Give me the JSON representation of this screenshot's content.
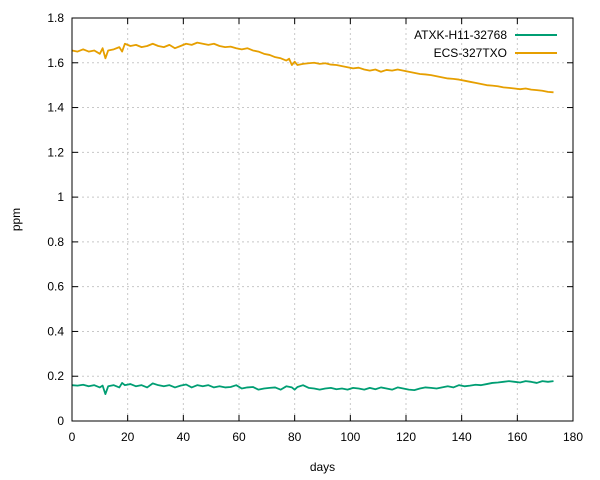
{
  "chart_data": {
    "type": "line",
    "title": "",
    "xlabel": "days",
    "ylabel": "ppm",
    "xlim": [
      0,
      180
    ],
    "ylim": [
      0,
      1.8
    ],
    "xticks": [
      0,
      20,
      40,
      60,
      80,
      100,
      120,
      140,
      160,
      180
    ],
    "xtick_labels": [
      "0",
      "20",
      "40",
      "60",
      "80",
      "100",
      "120",
      "140",
      "160",
      "180"
    ],
    "yticks": [
      0,
      0.2,
      0.4,
      0.6,
      0.8,
      1,
      1.2,
      1.4,
      1.6,
      1.8
    ],
    "ytick_labels": [
      "0",
      "0.2",
      "0.4",
      "0.6",
      "0.8",
      "1",
      "1.2",
      "1.4",
      "1.6",
      "1.8"
    ],
    "grid": true,
    "legend_position": "top-right",
    "series": [
      {
        "name": "ATXK-H11-32768",
        "color": "#009e73",
        "x": [
          0,
          2,
          4,
          6,
          8,
          10,
          11,
          12,
          13,
          15,
          17,
          18,
          19,
          21,
          23,
          25,
          27,
          29,
          31,
          33,
          35,
          37,
          39,
          41,
          43,
          45,
          47,
          49,
          51,
          53,
          55,
          57,
          59,
          61,
          63,
          65,
          67,
          69,
          71,
          73,
          75,
          77,
          79,
          80,
          81,
          83,
          85,
          87,
          89,
          91,
          93,
          95,
          97,
          99,
          101,
          103,
          105,
          107,
          109,
          111,
          113,
          115,
          117,
          119,
          121,
          123,
          125,
          127,
          129,
          131,
          133,
          135,
          137,
          139,
          141,
          143,
          145,
          147,
          149,
          151,
          153,
          155,
          157,
          159,
          161,
          163,
          165,
          167,
          169,
          171,
          173
        ],
        "y": [
          0.16,
          0.158,
          0.162,
          0.155,
          0.16,
          0.15,
          0.158,
          0.12,
          0.155,
          0.16,
          0.15,
          0.17,
          0.16,
          0.165,
          0.155,
          0.16,
          0.15,
          0.168,
          0.16,
          0.155,
          0.16,
          0.15,
          0.158,
          0.163,
          0.15,
          0.16,
          0.155,
          0.16,
          0.15,
          0.155,
          0.15,
          0.152,
          0.16,
          0.145,
          0.15,
          0.152,
          0.14,
          0.145,
          0.148,
          0.15,
          0.14,
          0.155,
          0.15,
          0.14,
          0.152,
          0.16,
          0.148,
          0.145,
          0.14,
          0.145,
          0.148,
          0.142,
          0.145,
          0.14,
          0.148,
          0.145,
          0.14,
          0.148,
          0.142,
          0.15,
          0.145,
          0.14,
          0.15,
          0.145,
          0.14,
          0.138,
          0.145,
          0.15,
          0.148,
          0.145,
          0.15,
          0.155,
          0.15,
          0.16,
          0.155,
          0.158,
          0.162,
          0.16,
          0.165,
          0.17,
          0.172,
          0.175,
          0.178,
          0.175,
          0.172,
          0.178,
          0.175,
          0.17,
          0.178,
          0.175,
          0.178
        ]
      },
      {
        "name": "ECS-327TXO",
        "color": "#e69f00",
        "x": [
          0,
          2,
          4,
          6,
          8,
          10,
          11,
          12,
          13,
          15,
          17,
          18,
          19,
          21,
          23,
          25,
          27,
          29,
          31,
          33,
          35,
          37,
          39,
          41,
          43,
          45,
          47,
          49,
          51,
          53,
          55,
          57,
          59,
          61,
          63,
          65,
          67,
          69,
          71,
          73,
          75,
          77,
          78,
          79,
          80,
          81,
          83,
          85,
          87,
          89,
          91,
          93,
          95,
          97,
          99,
          101,
          103,
          105,
          107,
          109,
          111,
          113,
          115,
          117,
          119,
          121,
          123,
          125,
          127,
          129,
          131,
          133,
          135,
          137,
          139,
          141,
          143,
          145,
          147,
          149,
          151,
          153,
          155,
          157,
          159,
          161,
          163,
          165,
          167,
          169,
          171,
          173
        ],
        "y": [
          1.655,
          1.65,
          1.66,
          1.65,
          1.655,
          1.64,
          1.665,
          1.62,
          1.655,
          1.66,
          1.67,
          1.65,
          1.685,
          1.675,
          1.68,
          1.67,
          1.675,
          1.685,
          1.675,
          1.67,
          1.68,
          1.665,
          1.675,
          1.685,
          1.68,
          1.69,
          1.685,
          1.68,
          1.685,
          1.675,
          1.67,
          1.672,
          1.665,
          1.66,
          1.665,
          1.655,
          1.65,
          1.64,
          1.635,
          1.625,
          1.62,
          1.61,
          1.618,
          1.59,
          1.605,
          1.59,
          1.595,
          1.598,
          1.6,
          1.595,
          1.598,
          1.592,
          1.59,
          1.585,
          1.58,
          1.575,
          1.578,
          1.57,
          1.565,
          1.57,
          1.56,
          1.568,
          1.565,
          1.57,
          1.565,
          1.56,
          1.555,
          1.55,
          1.548,
          1.545,
          1.54,
          1.535,
          1.53,
          1.528,
          1.525,
          1.52,
          1.515,
          1.51,
          1.505,
          1.5,
          1.498,
          1.495,
          1.49,
          1.488,
          1.485,
          1.482,
          1.485,
          1.48,
          1.478,
          1.475,
          1.47,
          1.468
        ]
      }
    ]
  }
}
